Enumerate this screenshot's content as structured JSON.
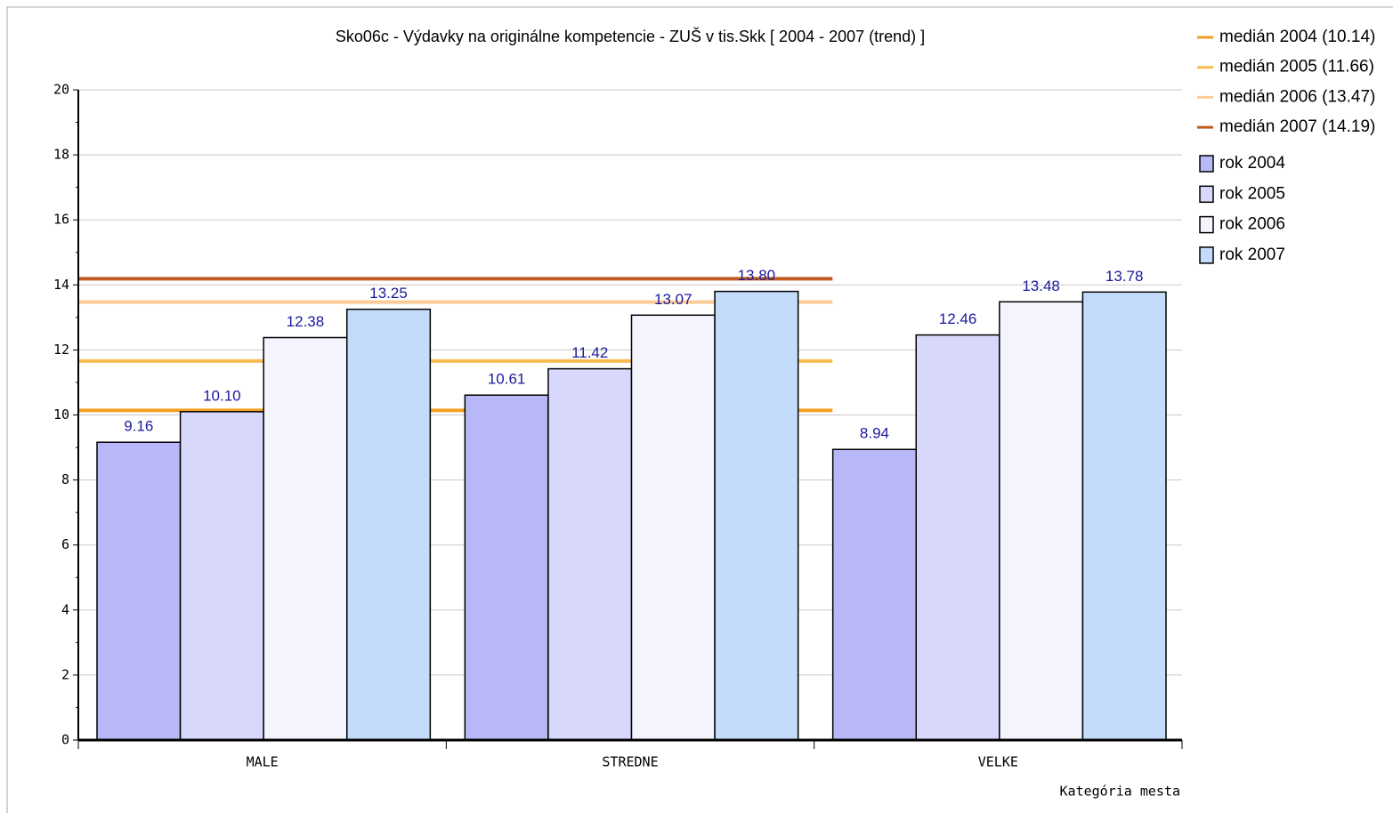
{
  "chart_data": {
    "type": "bar",
    "title": "Sko06c - Výdavky na originálne kompetencie - ZUŠ v tis.Skk [ 2004 - 2007 (trend) ]",
    "x_label": "Kategória mesta",
    "categories": [
      "MALE",
      "STREDNE",
      "VELKE"
    ],
    "series": [
      {
        "name": "rok 2004",
        "color": "#b8b8f8",
        "values": [
          9.16,
          10.61,
          8.94
        ],
        "value_labels": [
          "9.16",
          "10.61",
          "8.94"
        ]
      },
      {
        "name": "rok 2005",
        "color": "#d8d8fc",
        "values": [
          10.1,
          11.42,
          12.46
        ],
        "value_labels": [
          "10.10",
          "11.42",
          "12.46"
        ]
      },
      {
        "name": "rok 2006",
        "color": "#f4f4fe",
        "values": [
          12.38,
          13.07,
          13.48
        ],
        "value_labels": [
          "12.38",
          "13.07",
          "13.48"
        ]
      },
      {
        "name": "rok 2007",
        "color": "#c4dcfc",
        "values": [
          13.25,
          13.8,
          13.78
        ],
        "value_labels": [
          "13.25",
          "13.80",
          "13.78"
        ]
      }
    ],
    "medians": [
      {
        "name": "medián 2004 (10.14)",
        "value": 10.14,
        "color": "#f0a020"
      },
      {
        "name": "medián 2005 (11.66)",
        "value": 11.66,
        "color": "#f7bc50"
      },
      {
        "name": "medián 2006 (13.47)",
        "value": 13.47,
        "color": "#fccc98"
      },
      {
        "name": "medián 2007 (14.19)",
        "value": 14.19,
        "color": "#c05a20"
      }
    ],
    "ylim": [
      0,
      20
    ],
    "yticks": [
      0,
      2,
      4,
      6,
      8,
      10,
      12,
      14,
      16,
      18,
      20
    ],
    "grid": true
  }
}
